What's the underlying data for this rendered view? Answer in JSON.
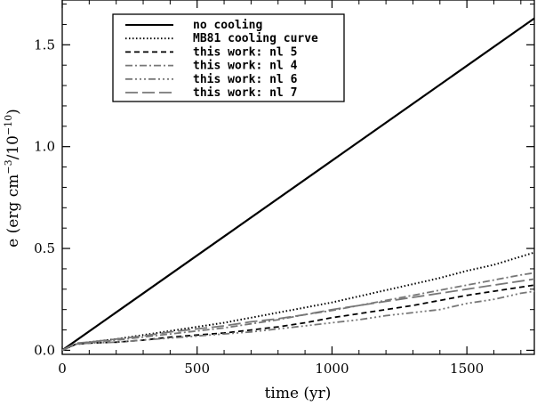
{
  "chart_data": {
    "type": "line",
    "xlabel": "time (yr)",
    "ylabel_parts": {
      "base": "e (erg cm",
      "exp1": "−3",
      "mid": "/10",
      "exp2": "−10",
      "end": ")"
    },
    "xlim": [
      0,
      1750
    ],
    "ylim": [
      -0.02,
      1.72
    ],
    "x_ticks": [
      0,
      500,
      1000,
      1500
    ],
    "x_tick_labels": [
      "0",
      "500",
      "1000",
      "1500"
    ],
    "y_ticks": [
      0.0,
      0.5,
      1.0,
      1.5
    ],
    "y_tick_labels": [
      "0.0",
      "0.5",
      "1.0",
      "1.5"
    ],
    "grid": false,
    "legend_position": "top-left",
    "series": [
      {
        "name": "no cooling",
        "color": "#000000",
        "dash": "solid",
        "x": [
          0,
          1750
        ],
        "y": [
          0.0,
          1.63
        ]
      },
      {
        "name": "MB81 cooling curve",
        "color": "#000000",
        "dash": "dotted",
        "x": [
          0,
          50,
          100,
          200,
          300,
          400,
          500,
          600,
          700,
          800,
          900,
          1000,
          1100,
          1200,
          1300,
          1400,
          1500,
          1600,
          1700,
          1750
        ],
        "y": [
          0.0,
          0.03,
          0.04,
          0.055,
          0.075,
          0.095,
          0.115,
          0.135,
          0.16,
          0.185,
          0.21,
          0.235,
          0.265,
          0.295,
          0.325,
          0.355,
          0.39,
          0.42,
          0.46,
          0.48
        ]
      },
      {
        "name": "this work: nl 5",
        "color": "#000000",
        "dash": "dashed",
        "x": [
          0,
          50,
          100,
          200,
          300,
          400,
          500,
          600,
          700,
          800,
          900,
          1000,
          1100,
          1200,
          1300,
          1400,
          1500,
          1600,
          1700,
          1750
        ],
        "y": [
          0.0,
          0.03,
          0.035,
          0.04,
          0.05,
          0.065,
          0.075,
          0.085,
          0.1,
          0.115,
          0.135,
          0.16,
          0.18,
          0.2,
          0.22,
          0.245,
          0.27,
          0.29,
          0.31,
          0.32
        ]
      },
      {
        "name": "this work: nl 4",
        "color": "#777777",
        "dash": "dashdot",
        "x": [
          0,
          50,
          100,
          200,
          300,
          400,
          500,
          600,
          700,
          800,
          900,
          1000,
          1100,
          1200,
          1300,
          1400,
          1500,
          1600,
          1700,
          1750
        ],
        "y": [
          0.0,
          0.03,
          0.04,
          0.05,
          0.065,
          0.08,
          0.095,
          0.11,
          0.13,
          0.15,
          0.175,
          0.195,
          0.22,
          0.245,
          0.27,
          0.295,
          0.32,
          0.345,
          0.37,
          0.38
        ]
      },
      {
        "name": "this work: nl 6",
        "color": "#777777",
        "dash": "dashdotdotdot",
        "x": [
          0,
          50,
          100,
          200,
          300,
          400,
          500,
          600,
          700,
          800,
          900,
          1000,
          1100,
          1200,
          1300,
          1400,
          1500,
          1600,
          1700,
          1750
        ],
        "y": [
          0.0,
          0.03,
          0.035,
          0.04,
          0.05,
          0.06,
          0.07,
          0.08,
          0.09,
          0.105,
          0.12,
          0.135,
          0.15,
          0.17,
          0.185,
          0.2,
          0.23,
          0.25,
          0.28,
          0.29
        ]
      },
      {
        "name": "this work: nl 7",
        "color": "#777777",
        "dash": "longdash",
        "x": [
          0,
          50,
          100,
          200,
          300,
          400,
          500,
          600,
          700,
          800,
          900,
          1000,
          1100,
          1200,
          1300,
          1400,
          1500,
          1600,
          1700,
          1750
        ],
        "y": [
          0.0,
          0.035,
          0.04,
          0.055,
          0.07,
          0.09,
          0.105,
          0.12,
          0.14,
          0.155,
          0.175,
          0.2,
          0.22,
          0.24,
          0.26,
          0.28,
          0.3,
          0.32,
          0.34,
          0.35
        ]
      }
    ]
  }
}
